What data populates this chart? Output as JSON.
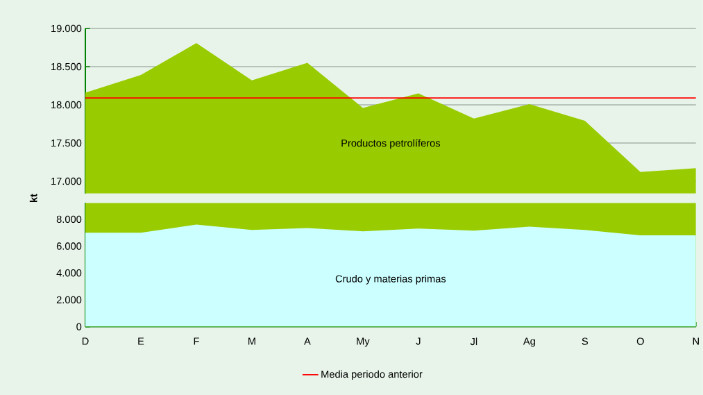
{
  "chart_data": [
    {
      "type": "area",
      "ylabel": "kt",
      "categories": [
        null,
        null,
        null,
        null,
        null,
        null,
        null,
        null,
        null,
        null,
        null,
        null
      ],
      "series": [
        {
          "name": "Productos petrolíferos",
          "color": "#99cc00",
          "values": [
            18160,
            18390,
            18810,
            18320,
            18550,
            17960,
            18150,
            17820,
            18010,
            17790,
            17120,
            17170
          ]
        }
      ],
      "ylim": [
        16840,
        19000
      ],
      "yticks": [
        {
          "value": 17000,
          "label": "17.000"
        },
        {
          "value": 17500,
          "label": "17.500"
        },
        {
          "value": 18000,
          "label": "18.000"
        },
        {
          "value": 18500,
          "label": "18.500"
        },
        {
          "value": 19000,
          "label": "19.000"
        }
      ],
      "grid": "y",
      "tick_labels": "y",
      "legend": "bottom",
      "ref_lines": [
        {
          "axis": "y",
          "value": 18090,
          "label": "Media periodo anterior",
          "color": "#ff0000"
        }
      ]
    },
    {
      "type": "area",
      "categories": [
        "D",
        "E",
        "F",
        "M",
        "A",
        "My",
        "J",
        "Jl",
        "Ag",
        "S",
        "O",
        "N"
      ],
      "series": [
        {
          "name": "Crudo y materias primas",
          "color": "#ccffff",
          "values": [
            7000,
            7000,
            7600,
            7200,
            7350,
            7100,
            7300,
            7150,
            7450,
            7200,
            6800,
            6800
          ]
        }
      ],
      "bands": [
        {
          "axis": "y",
          "from": 0,
          "to": 9220,
          "color": "#99cc00"
        }
      ],
      "ylim": [
        0,
        9220
      ],
      "yticks": [
        {
          "value": 0,
          "label": "0"
        },
        {
          "value": 2000,
          "label": "2.000"
        },
        {
          "value": 4000,
          "label": "4.000"
        },
        {
          "value": 6000,
          "label": "6.000"
        },
        {
          "value": 8000,
          "label": "8.000"
        }
      ]
    }
  ]
}
